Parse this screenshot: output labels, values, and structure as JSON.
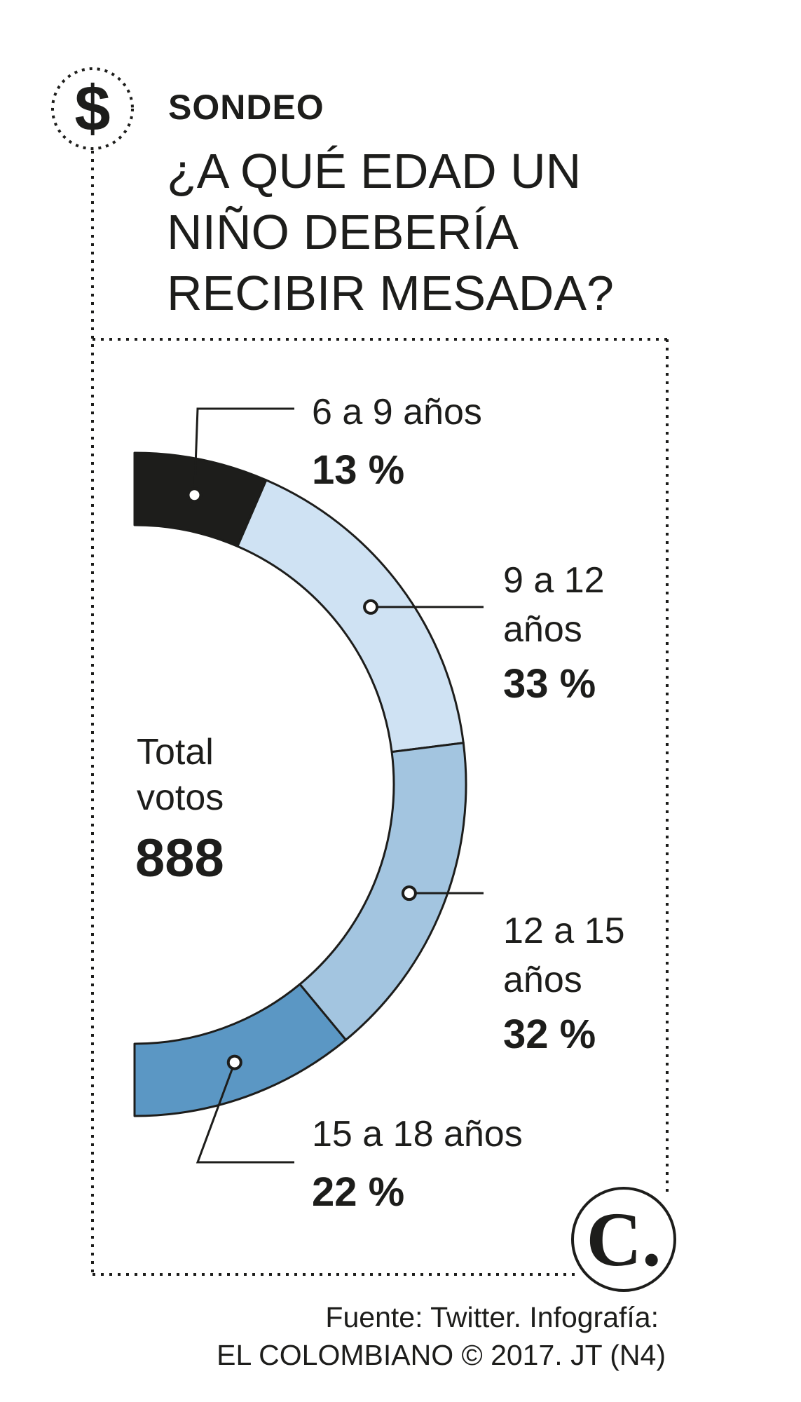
{
  "header": {
    "kicker": "SONDEO",
    "title_lines": [
      "¿A QUÉ EDAD UN",
      "NIÑO DEBERÍA",
      "RECIBIR MESADA?"
    ],
    "icon": "dollar-icon"
  },
  "total": {
    "label_lines": [
      "Total",
      "votos"
    ],
    "value": "888"
  },
  "chart_data": {
    "type": "pie",
    "title": "¿A QUÉ EDAD UN NIÑO DEBERÍA RECIBIR MESADA?",
    "subtitle": "",
    "categories": [
      "6 a 9 años",
      "9 a 12 años",
      "12 a 15 años",
      "15 a 18 años"
    ],
    "values": [
      13,
      33,
      32,
      22
    ],
    "unit": "%",
    "colors": [
      "#1d1d1b",
      "#cfe2f3",
      "#a3c5e0",
      "#5b97c4"
    ],
    "labels": [
      {
        "lines": [
          "6 a 9 años"
        ],
        "pct": "13 %"
      },
      {
        "lines": [
          "9 a 12",
          "años"
        ],
        "pct": "33 %"
      },
      {
        "lines": [
          "12 a 15",
          "años"
        ],
        "pct": "32 %"
      },
      {
        "lines": [
          "15 a 18 años"
        ],
        "pct": "22 %"
      }
    ],
    "shape": "half-donut"
  },
  "footer": {
    "source_lines": [
      "Fuente: Twitter. Infografía:",
      "EL COLOMBIANO © 2017. JT (N4)"
    ],
    "logo_text": "C."
  }
}
